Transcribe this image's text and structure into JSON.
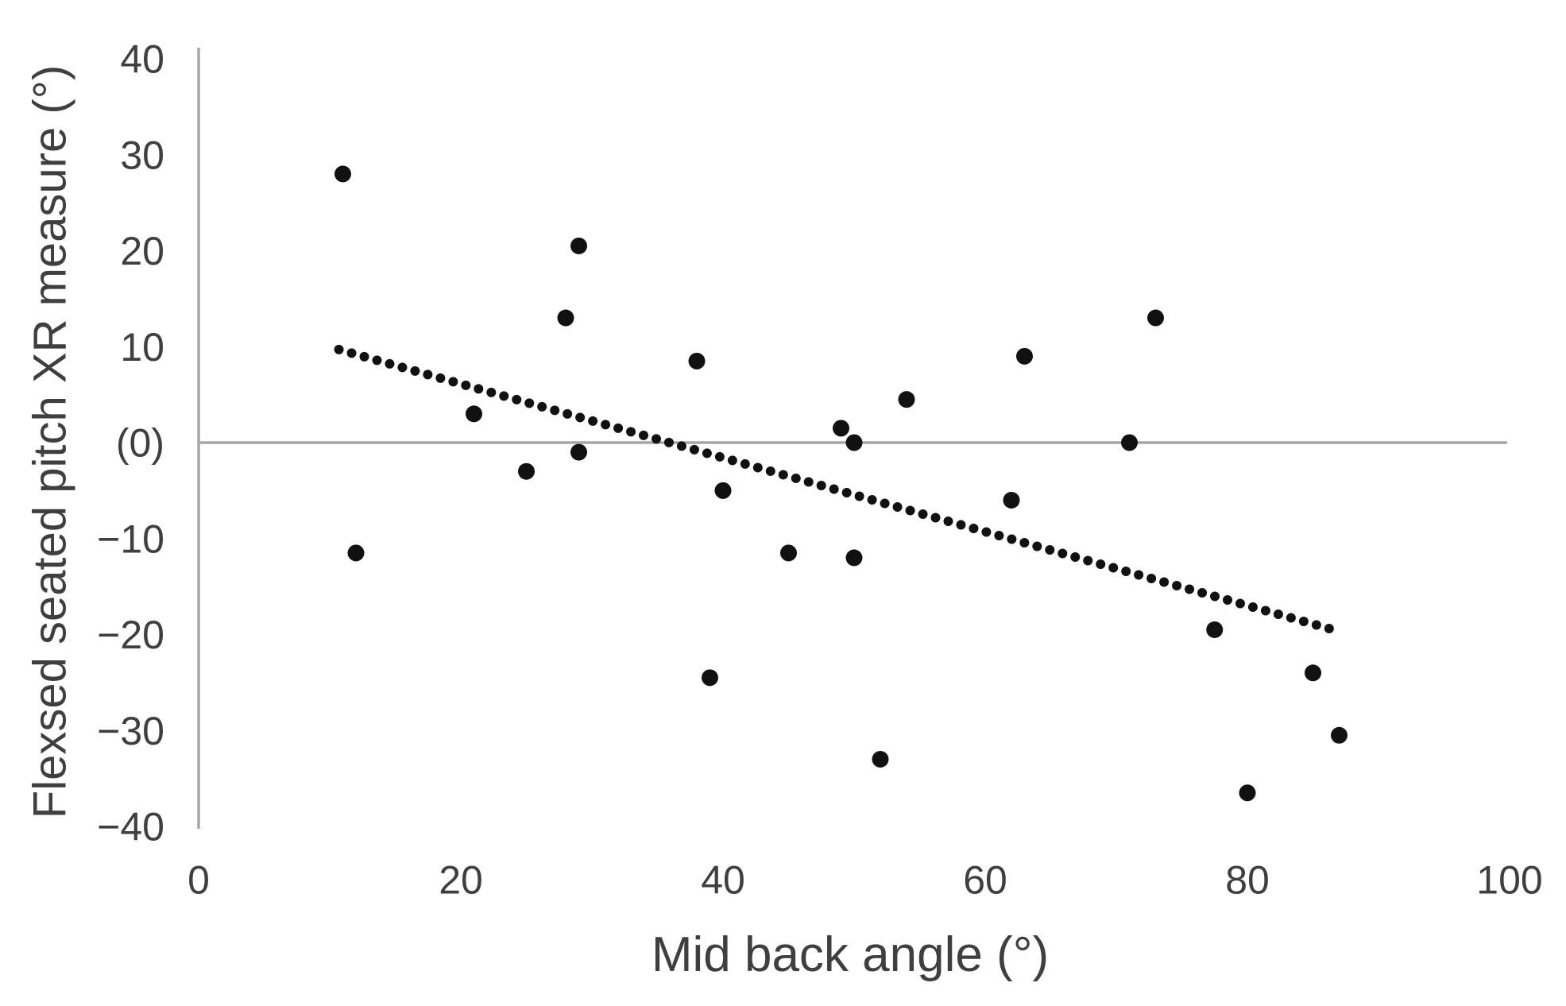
{
  "chart_data": {
    "type": "scatter",
    "title": "",
    "xlabel": "Mid back angle (°)",
    "ylabel": "Flexsed seated pitch XR measure (°)",
    "xlim": [
      0,
      100
    ],
    "ylim": [
      -40,
      40
    ],
    "grid": "off",
    "legend": "none",
    "zero_gridline": true,
    "x_ticks": [
      {
        "label": "0",
        "value": 0
      },
      {
        "label": "20",
        "value": 20
      },
      {
        "label": "40",
        "value": 40
      },
      {
        "label": "60",
        "value": 60
      },
      {
        "label": "80",
        "value": 80
      },
      {
        "label": "100",
        "value": 100
      }
    ],
    "y_ticks": [
      {
        "label": "40",
        "value": 40
      },
      {
        "label": "30",
        "value": 30
      },
      {
        "label": "20",
        "value": 20
      },
      {
        "label": "10",
        "value": 10
      },
      {
        "label": "(0)",
        "value": 0
      },
      {
        "label": "−10",
        "value": -10
      },
      {
        "label": "−20",
        "value": -20
      },
      {
        "label": "−30",
        "value": -30
      },
      {
        "label": "−40",
        "value": -40
      }
    ],
    "points": [
      {
        "x": 11,
        "y": 28
      },
      {
        "x": 29,
        "y": 20.5
      },
      {
        "x": 28,
        "y": 13
      },
      {
        "x": 21,
        "y": 3
      },
      {
        "x": 12,
        "y": -11.5
      },
      {
        "x": 25,
        "y": -3
      },
      {
        "x": 29,
        "y": -1
      },
      {
        "x": 38,
        "y": 8.5
      },
      {
        "x": 40,
        "y": -5
      },
      {
        "x": 39,
        "y": -24.5
      },
      {
        "x": 45,
        "y": -11.5
      },
      {
        "x": 49,
        "y": 1.5
      },
      {
        "x": 50,
        "y": 0
      },
      {
        "x": 50,
        "y": -12
      },
      {
        "x": 52,
        "y": -33
      },
      {
        "x": 54,
        "y": 4.5
      },
      {
        "x": 62,
        "y": -6
      },
      {
        "x": 63,
        "y": 9
      },
      {
        "x": 71,
        "y": 0
      },
      {
        "x": 73,
        "y": 13
      },
      {
        "x": 77.5,
        "y": -19.5
      },
      {
        "x": 80,
        "y": -36.5
      },
      {
        "x": 85,
        "y": -24
      },
      {
        "x": 87,
        "y": -30.5
      }
    ],
    "trendline": {
      "style": "dotted",
      "x1": 10.7,
      "y1": 9.7,
      "x2": 86.8,
      "y2": -19.6
    },
    "colors": {
      "point": "#111111",
      "trend": "#111111",
      "axis_line": "#a6a6a6",
      "zero_line": "#a6a6a6",
      "text": "#3f3f3f",
      "background": "#ffffff"
    }
  }
}
